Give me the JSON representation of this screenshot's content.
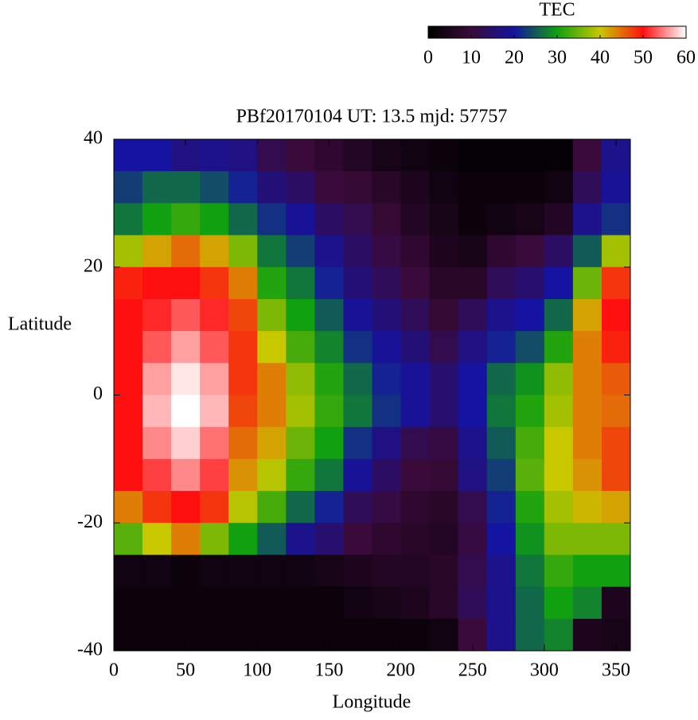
{
  "chart_data": {
    "type": "heatmap",
    "title": "PBf20170104  UT: 13.5  mjd: 57757",
    "x_label": "Longitude",
    "y_label": "Latitude",
    "colorbar_title": "TEC",
    "x": [
      10,
      30,
      50,
      70,
      90,
      110,
      130,
      150,
      170,
      190,
      210,
      230,
      250,
      270,
      290,
      310,
      330,
      350
    ],
    "y": [
      37.5,
      32.5,
      27.5,
      22.5,
      17.5,
      12.5,
      7.5,
      2.5,
      -2.5,
      -7.5,
      -12.5,
      -17.5,
      -22.5,
      -27.5,
      -32.5,
      -37.5
    ],
    "z": [
      [
        20,
        20,
        17,
        18,
        17,
        12,
        10,
        8,
        6,
        4,
        3,
        2,
        1,
        1,
        1,
        1,
        10,
        18
      ],
      [
        23,
        26,
        26,
        24,
        21,
        16,
        14,
        10,
        9,
        7,
        5,
        3,
        2,
        2,
        2,
        3,
        13,
        19
      ],
      [
        27,
        30,
        32,
        30,
        26,
        22,
        19,
        14,
        12,
        9,
        6,
        4,
        2,
        3,
        4,
        6,
        18,
        22
      ],
      [
        38,
        42,
        45,
        42,
        36,
        27,
        23,
        18,
        14,
        11,
        8,
        5,
        4,
        8,
        10,
        14,
        25,
        38
      ],
      [
        49,
        50,
        50,
        48,
        44,
        31,
        27,
        21,
        16,
        13,
        10,
        7,
        7,
        13,
        15,
        20,
        35,
        48
      ],
      [
        50,
        51,
        53,
        51,
        47,
        36,
        30,
        25,
        19,
        16,
        13,
        9,
        13,
        18,
        20,
        26,
        42,
        50
      ],
      [
        50,
        53,
        56,
        53,
        48,
        40,
        33,
        28,
        22,
        19,
        16,
        12,
        17,
        21,
        24,
        31,
        44,
        49
      ],
      [
        50,
        56,
        59,
        56,
        48,
        44,
        37,
        31,
        26,
        21,
        19,
        15,
        20,
        26,
        29,
        37,
        44,
        46
      ],
      [
        50,
        57,
        60,
        57,
        47,
        44,
        38,
        32,
        27,
        22,
        19,
        15,
        20,
        27,
        31,
        38,
        44,
        45
      ],
      [
        50,
        55,
        58,
        54,
        45,
        42,
        35,
        30,
        22,
        17,
        12,
        11,
        18,
        25,
        33,
        40,
        44,
        47
      ],
      [
        50,
        52,
        55,
        52,
        43,
        39,
        32,
        27,
        19,
        14,
        10,
        9,
        17,
        23,
        34,
        40,
        43,
        47
      ],
      [
        44,
        48,
        50,
        48,
        39,
        33,
        26,
        21,
        13,
        11,
        8,
        7,
        12,
        21,
        31,
        38,
        41,
        42
      ],
      [
        34,
        40,
        44,
        36,
        30,
        25,
        18,
        15,
        10,
        8,
        7,
        6,
        11,
        20,
        29,
        36,
        36,
        36
      ],
      [
        3,
        3,
        2,
        3,
        3,
        3,
        3,
        4,
        5,
        6,
        6,
        7,
        12,
        18,
        27,
        32,
        30,
        30
      ],
      [
        2,
        2,
        2,
        2,
        2,
        2,
        2,
        2,
        3,
        4,
        5,
        7,
        13,
        18,
        26,
        30,
        28,
        5
      ],
      [
        2,
        2,
        2,
        2,
        2,
        2,
        2,
        2,
        2,
        2,
        2,
        3,
        10,
        18,
        26,
        28,
        5,
        4
      ]
    ],
    "xlim": [
      0,
      360
    ],
    "xticks": [
      0,
      50,
      100,
      150,
      200,
      250,
      300,
      350
    ],
    "ylim": [
      -40,
      40
    ],
    "yticks": [
      -40,
      -20,
      0,
      20,
      40
    ],
    "zlim": [
      0,
      60
    ],
    "zticks": [
      0,
      10,
      20,
      30,
      40,
      50,
      60
    ],
    "colors": [
      "#000000",
      "#3a0a3a",
      "#1414a0",
      "#10a010",
      "#c8c800",
      "#ff1010",
      "#ffffff"
    ]
  }
}
